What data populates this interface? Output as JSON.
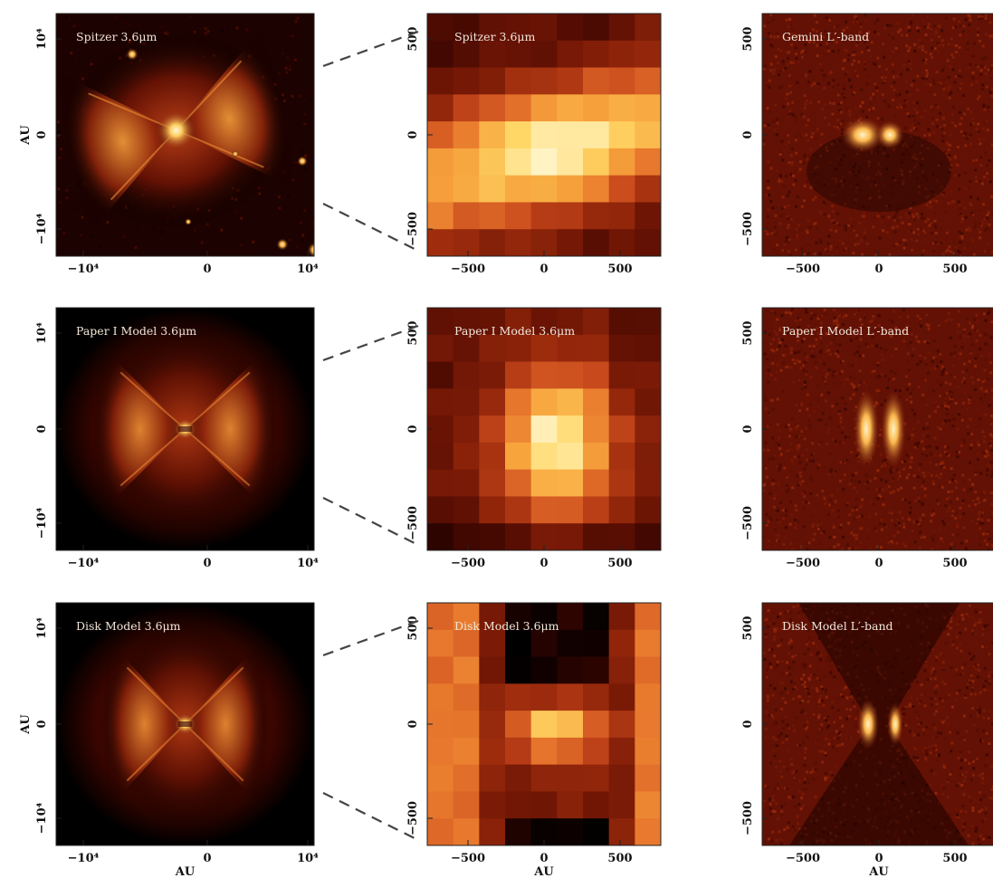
{
  "figure": {
    "rows": [
      {
        "panels": [
          {
            "title": "Spitzer 3.6μm",
            "scene": "spitzer_wide",
            "xticks": [
              "−10⁴",
              "0",
              "10⁴"
            ],
            "yticks": [
              "10⁴",
              "0",
              "−10⁴"
            ],
            "ylabel": "AU",
            "xlabel": ""
          },
          {
            "title": "Spitzer 3.6μm",
            "scene": "spitzer_zoom",
            "xticks": [
              "−500",
              "0",
              "500"
            ],
            "yticks": [
              "500",
              "0",
              "−500"
            ],
            "ylabel": "",
            "xlabel": ""
          },
          {
            "title": "Gemini L′-band",
            "scene": "gemini_l",
            "xticks": [
              "−500",
              "0",
              "500"
            ],
            "yticks": [
              "500",
              "0",
              "−500"
            ],
            "ylabel": "",
            "xlabel": ""
          }
        ]
      },
      {
        "panels": [
          {
            "title": "Paper I Model 3.6μm",
            "scene": "model_wide",
            "xticks": [
              "−10⁴",
              "0",
              "10⁴"
            ],
            "yticks": [
              "10⁴",
              "0",
              "−10⁴"
            ],
            "ylabel": "",
            "xlabel": ""
          },
          {
            "title": "Paper I Model 3.6μm",
            "scene": "paper1_zoom",
            "xticks": [
              "−500",
              "0",
              "500"
            ],
            "yticks": [
              "500",
              "0",
              "−500"
            ],
            "ylabel": "",
            "xlabel": ""
          },
          {
            "title": "Paper I Model L′-band",
            "scene": "paper1_l",
            "xticks": [
              "−500",
              "0",
              "500"
            ],
            "yticks": [
              "500",
              "0",
              "−500"
            ],
            "ylabel": "",
            "xlabel": ""
          }
        ]
      },
      {
        "panels": [
          {
            "title": "Disk Model 3.6μm",
            "scene": "disk_wide",
            "xticks": [
              "−10⁴",
              "0",
              "10⁴"
            ],
            "yticks": [
              "10⁴",
              "0",
              "−10⁴"
            ],
            "ylabel": "AU",
            "xlabel": "AU"
          },
          {
            "title": "Disk Model 3.6μm",
            "scene": "disk_zoom",
            "xticks": [
              "−500",
              "0",
              "500"
            ],
            "yticks": [
              "500",
              "0",
              "−500"
            ],
            "ylabel": "",
            "xlabel": "AU"
          },
          {
            "title": "Disk Model L′-band",
            "scene": "disk_l",
            "xticks": [
              "−500",
              "0",
              "500"
            ],
            "yticks": [
              "500",
              "0",
              "−500"
            ],
            "ylabel": "",
            "xlabel": "AU"
          }
        ]
      }
    ]
  },
  "colors": {
    "colormap": [
      "#000000",
      "#3a0500",
      "#6e1505",
      "#9a2a0c",
      "#c8491c",
      "#e6752c",
      "#f7a43d",
      "#ffd766",
      "#fff3c4"
    ]
  }
}
